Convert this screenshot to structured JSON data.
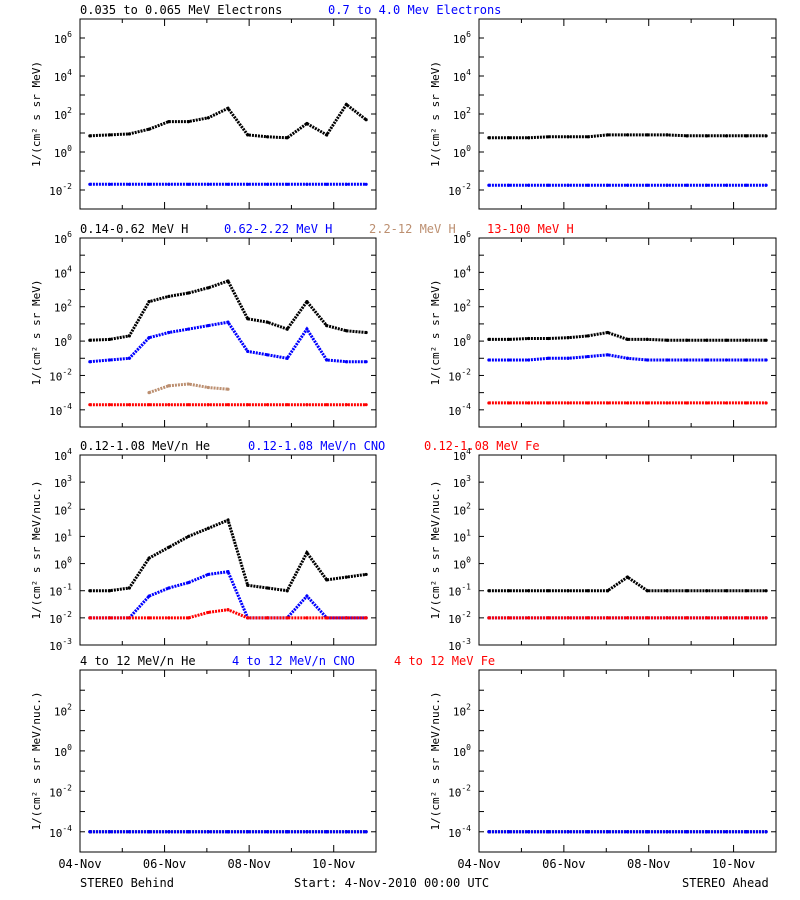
{
  "colors": {
    "black": "#000000",
    "blue": "#0000ff",
    "tan": "#bc8f70",
    "red": "#ff0000"
  },
  "footer": {
    "behind": "STEREO Behind",
    "start": "Start:  4-Nov-2010 00:00 UTC",
    "ahead": "STEREO Ahead"
  },
  "x_tick_labels": [
    "04-Nov",
    "06-Nov",
    "08-Nov",
    "10-Nov"
  ],
  "x_days": [
    "2010-11-04",
    "2010-11-05",
    "2010-11-06",
    "2010-11-07",
    "2010-11-08",
    "2010-11-09",
    "2010-11-10",
    "2010-11-11"
  ],
  "chart_data": [
    {
      "id": "electrons-behind",
      "type": "scatter",
      "log_y": true,
      "ylabel": "1/(cm² s sr MeV)",
      "ylim_exp": [
        -3,
        7
      ],
      "ytick_exp": [
        -2,
        0,
        2,
        4,
        6
      ],
      "legend": [
        {
          "text": "0.035 to 0.065 MeV Electrons",
          "color": "#000000"
        },
        {
          "text": "0.7 to 4.0 Mev Electrons",
          "color": "#0000ff"
        }
      ],
      "series": [
        {
          "color": "#000000",
          "log_values": [
            0.85,
            0.9,
            0.95,
            1.2,
            1.6,
            1.6,
            1.8,
            2.3,
            0.9,
            0.8,
            0.75,
            1.5,
            0.9,
            2.5,
            1.7
          ]
        },
        {
          "color": "#0000ff",
          "log_values": [
            -1.7,
            -1.7,
            -1.7,
            -1.7,
            -1.7,
            -1.7,
            -1.7,
            -1.7,
            -1.7,
            -1.7,
            -1.7,
            -1.7,
            -1.7,
            -1.7,
            -1.7
          ]
        }
      ]
    },
    {
      "id": "electrons-ahead",
      "type": "scatter",
      "log_y": true,
      "ylabel": "1/(cm² s sr MeV)",
      "ylim_exp": [
        -3,
        7
      ],
      "ytick_exp": [
        -2,
        0,
        2,
        4,
        6
      ],
      "legend": [],
      "series": [
        {
          "color": "#000000",
          "log_values": [
            0.75,
            0.75,
            0.75,
            0.8,
            0.8,
            0.8,
            0.9,
            0.9,
            0.9,
            0.9,
            0.85,
            0.85,
            0.85,
            0.85,
            0.85
          ]
        },
        {
          "color": "#0000ff",
          "log_values": [
            -1.75,
            -1.75,
            -1.75,
            -1.75,
            -1.75,
            -1.75,
            -1.75,
            -1.75,
            -1.75,
            -1.75,
            -1.75,
            -1.75,
            -1.75,
            -1.75,
            -1.75
          ]
        }
      ]
    },
    {
      "id": "protons-behind",
      "type": "scatter",
      "log_y": true,
      "ylabel": "1/(cm² s sr MeV)",
      "ylim_exp": [
        -5,
        6
      ],
      "ytick_exp": [
        -4,
        -2,
        0,
        2,
        4,
        6
      ],
      "legend": [
        {
          "text": "0.14-0.62 MeV H",
          "color": "#000000"
        },
        {
          "text": "0.62-2.22 MeV H",
          "color": "#0000ff"
        },
        {
          "text": "2.2-12 MeV H",
          "color": "#bc8f70"
        },
        {
          "text": "13-100 MeV H",
          "color": "#ff0000"
        }
      ],
      "series": [
        {
          "color": "#000000",
          "log_values": [
            0.05,
            0.1,
            0.3,
            2.3,
            2.6,
            2.8,
            3.1,
            3.5,
            1.3,
            1.1,
            0.7,
            2.3,
            0.9,
            0.6,
            0.5
          ]
        },
        {
          "color": "#0000ff",
          "log_values": [
            -1.2,
            -1.1,
            -1.0,
            0.2,
            0.5,
            0.7,
            0.9,
            1.1,
            -0.6,
            -0.8,
            -1.0,
            0.7,
            -1.1,
            -1.2,
            -1.2
          ]
        },
        {
          "color": "#bc8f70",
          "log_values": [
            null,
            null,
            null,
            -3.0,
            -2.6,
            -2.5,
            -2.7,
            -2.8,
            null,
            null,
            null,
            null,
            null,
            null,
            null
          ]
        },
        {
          "color": "#ff0000",
          "log_values": [
            -3.7,
            -3.7,
            -3.7,
            -3.7,
            -3.7,
            -3.7,
            -3.7,
            -3.7,
            -3.7,
            -3.7,
            -3.7,
            -3.7,
            -3.7,
            -3.7,
            -3.7
          ]
        }
      ]
    },
    {
      "id": "protons-ahead",
      "type": "scatter",
      "log_y": true,
      "ylabel": "1/(cm² s sr MeV)",
      "ylim_exp": [
        -5,
        6
      ],
      "ytick_exp": [
        -4,
        -2,
        0,
        2,
        4,
        6
      ],
      "legend": [],
      "series": [
        {
          "color": "#000000",
          "log_values": [
            0.1,
            0.1,
            0.15,
            0.15,
            0.2,
            0.3,
            0.5,
            0.1,
            0.1,
            0.05,
            0.05,
            0.05,
            0.05,
            0.05,
            0.05
          ]
        },
        {
          "color": "#0000ff",
          "log_values": [
            -1.1,
            -1.1,
            -1.1,
            -1.0,
            -1.0,
            -0.9,
            -0.8,
            -1.0,
            -1.1,
            -1.1,
            -1.1,
            -1.1,
            -1.1,
            -1.1,
            -1.1
          ]
        },
        {
          "color": "#ff0000",
          "log_values": [
            -3.6,
            -3.6,
            -3.6,
            -3.6,
            -3.6,
            -3.6,
            -3.6,
            -3.6,
            -3.6,
            -3.6,
            -3.6,
            -3.6,
            -3.6,
            -3.6,
            -3.6
          ]
        }
      ]
    },
    {
      "id": "heavy-low-behind",
      "type": "scatter",
      "log_y": true,
      "ylabel": "1/(cm² s sr MeV/nuc.)",
      "ylim_exp": [
        -3,
        4
      ],
      "ytick_exp": [
        -3,
        -2,
        -1,
        0,
        1,
        2,
        3,
        4
      ],
      "legend": [
        {
          "text": "0.12-1.08 MeV/n He",
          "color": "#000000"
        },
        {
          "text": "0.12-1.08 MeV/n CNO",
          "color": "#0000ff"
        },
        {
          "text": "0.12-1.08 MeV Fe",
          "color": "#ff0000"
        }
      ],
      "series": [
        {
          "color": "#000000",
          "log_values": [
            -1.0,
            -1.0,
            -0.9,
            0.2,
            0.6,
            1.0,
            1.3,
            1.6,
            -0.8,
            -0.9,
            -1.0,
            0.4,
            -0.6,
            -0.5,
            -0.4
          ]
        },
        {
          "color": "#0000ff",
          "log_values": [
            -2.0,
            -2.0,
            -2.0,
            -1.2,
            -0.9,
            -0.7,
            -0.4,
            -0.3,
            -2.0,
            -2.0,
            -2.0,
            -1.2,
            -2.0,
            -2.0,
            -2.0
          ]
        },
        {
          "color": "#ff0000",
          "log_values": [
            -2.0,
            -2.0,
            -2.0,
            -2.0,
            -2.0,
            -2.0,
            -1.8,
            -1.7,
            -2.0,
            -2.0,
            -2.0,
            -2.0,
            -2.0,
            -2.0,
            -2.0
          ]
        }
      ]
    },
    {
      "id": "heavy-low-ahead",
      "type": "scatter",
      "log_y": true,
      "ylabel": "1/(cm² s sr MeV/nuc.)",
      "ylim_exp": [
        -3,
        4
      ],
      "ytick_exp": [
        -3,
        -2,
        -1,
        0,
        1,
        2,
        3,
        4
      ],
      "legend": [],
      "series": [
        {
          "color": "#000000",
          "log_values": [
            -1.0,
            -1.0,
            -1.0,
            -1.0,
            -1.0,
            -1.0,
            -1.0,
            -0.5,
            -1.0,
            -1.0,
            -1.0,
            -1.0,
            -1.0,
            -1.0,
            -1.0
          ]
        },
        {
          "color": "#0000ff",
          "log_values": [
            -2.0,
            -2.0,
            -2.0,
            -2.0,
            -2.0,
            -2.0,
            -2.0,
            -2.0,
            -2.0,
            -2.0,
            -2.0,
            -2.0,
            -2.0,
            -2.0,
            -2.0
          ]
        },
        {
          "color": "#ff0000",
          "log_values": [
            -2.0,
            -2.0,
            -2.0,
            -2.0,
            -2.0,
            -2.0,
            -2.0,
            -2.0,
            -2.0,
            -2.0,
            -2.0,
            -2.0,
            -2.0,
            -2.0,
            -2.0
          ]
        }
      ]
    },
    {
      "id": "heavy-high-behind",
      "type": "scatter",
      "log_y": true,
      "ylabel": "1/(cm² s sr MeV/nuc.)",
      "ylim_exp": [
        -5,
        4
      ],
      "ytick_exp": [
        -4,
        -2,
        0,
        2
      ],
      "legend": [
        {
          "text": "4 to 12 MeV/n He",
          "color": "#000000"
        },
        {
          "text": "4 to 12 MeV/n CNO",
          "color": "#0000ff"
        },
        {
          "text": "4 to 12 MeV Fe",
          "color": "#ff0000"
        }
      ],
      "series": [
        {
          "color": "#000000",
          "log_values": [
            -4.0,
            -4.0,
            -4.0,
            -4.0,
            -4.0,
            -4.0,
            -4.0,
            -4.0,
            -4.0,
            -4.0,
            -4.0,
            -4.0,
            -4.0,
            -4.0,
            -4.0
          ]
        },
        {
          "color": "#0000ff",
          "log_values": [
            -4.0,
            -4.0,
            -4.0,
            -4.0,
            -4.0,
            -4.0,
            -4.0,
            -4.0,
            -4.0,
            -4.0,
            -4.0,
            -4.0,
            -4.0,
            -4.0,
            -4.0
          ]
        }
      ]
    },
    {
      "id": "heavy-high-ahead",
      "type": "scatter",
      "log_y": true,
      "ylabel": "1/(cm² s sr MeV/nuc.)",
      "ylim_exp": [
        -5,
        4
      ],
      "ytick_exp": [
        -4,
        -2,
        0,
        2
      ],
      "legend": [],
      "series": [
        {
          "color": "#000000",
          "log_values": [
            -4.0,
            -4.0,
            -4.0,
            -4.0,
            -4.0,
            -4.0,
            -4.0,
            -4.0,
            -4.0,
            -4.0,
            -4.0,
            -4.0,
            -4.0,
            -4.0,
            -4.0
          ]
        },
        {
          "color": "#0000ff",
          "log_values": [
            -4.0,
            -4.0,
            -4.0,
            -4.0,
            -4.0,
            -4.0,
            -4.0,
            -4.0,
            -4.0,
            -4.0,
            -4.0,
            -4.0,
            -4.0,
            -4.0,
            -4.0
          ]
        }
      ]
    }
  ]
}
